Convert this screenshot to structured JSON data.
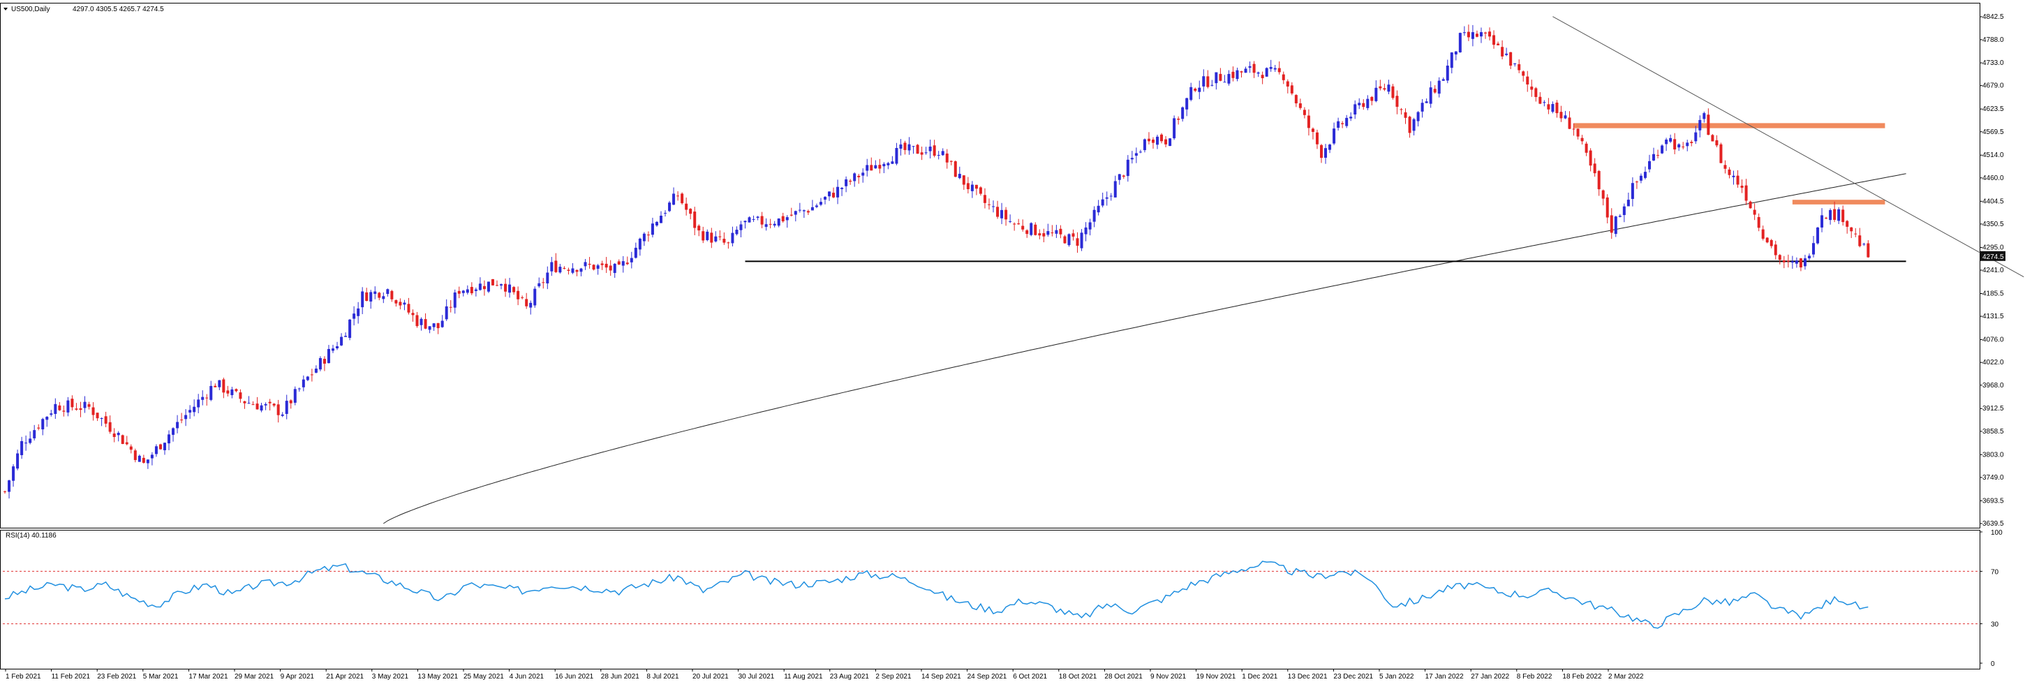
{
  "header": {
    "symbol_label": "US500,Daily",
    "ohlc_text": "4297.0 4305.5 4265.7 4274.5"
  },
  "rsi_header": {
    "label": "RSI(14) 40.1186"
  },
  "colors": {
    "bull": "#2b2bd6",
    "bear": "#e32222",
    "ma": "#222222",
    "rsi": "#1f8fe0",
    "rsi_levels": "#e03030",
    "resistance_zone": "#f08a5d",
    "support_line": "#000000",
    "trendline": "#555555",
    "price_tag_bg": "#111111",
    "price_tag_text": "#ffffff"
  },
  "chart_data": {
    "type": "candlestick",
    "symbol": "US500",
    "timeframe": "Daily",
    "ylim": [
      3639.5,
      4842.5
    ],
    "y_ticks": [
      "4842.5",
      "4788.0",
      "4733.0",
      "4679.0",
      "4623.5",
      "4569.5",
      "4514.0",
      "4460.0",
      "4404.5",
      "4350.5",
      "4295.0",
      "4241.0",
      "4185.5",
      "4131.5",
      "4076.0",
      "4022.0",
      "3968.0",
      "3912.5",
      "3858.5",
      "3803.0",
      "3749.0",
      "3693.5",
      "3639.5"
    ],
    "x_ticks": [
      "1 Feb 2021",
      "11 Feb 2021",
      "23 Feb 2021",
      "5 Mar 2021",
      "17 Mar 2021",
      "29 Mar 2021",
      "9 Apr 2021",
      "21 Apr 2021",
      "3 May 2021",
      "13 May 2021",
      "25 May 2021",
      "4 Jun 2021",
      "16 Jun 2021",
      "28 Jun 2021",
      "8 Jul 2021",
      "20 Jul 2021",
      "30 Jul 2021",
      "11 Aug 2021",
      "23 Aug 2021",
      "2 Sep 2021",
      "14 Sep 2021",
      "24 Sep 2021",
      "6 Oct 2021",
      "18 Oct 2021",
      "28 Oct 2021",
      "9 Nov 2021",
      "19 Nov 2021",
      "1 Dec 2021",
      "13 Dec 2021",
      "23 Dec 2021",
      "5 Jan 2022",
      "17 Jan 2022",
      "27 Jan 2022",
      "8 Feb 2022",
      "18 Feb 2022",
      "2 Mar 2022"
    ],
    "current_price": "4274.5",
    "price_path": [
      [
        0,
        3715
      ],
      [
        4,
        3830
      ],
      [
        12,
        3920
      ],
      [
        20,
        3915
      ],
      [
        27,
        3850
      ],
      [
        33,
        3780
      ],
      [
        40,
        3865
      ],
      [
        50,
        3972
      ],
      [
        57,
        3930
      ],
      [
        66,
        3905
      ],
      [
        72,
        3985
      ],
      [
        80,
        4080
      ],
      [
        85,
        4180
      ],
      [
        91,
        4195
      ],
      [
        98,
        4120
      ],
      [
        103,
        4105
      ],
      [
        108,
        4195
      ],
      [
        118,
        4215
      ],
      [
        124,
        4150
      ],
      [
        130,
        4250
      ],
      [
        140,
        4250
      ],
      [
        146,
        4240
      ],
      [
        154,
        4350
      ],
      [
        160,
        4420
      ],
      [
        165,
        4330
      ],
      [
        172,
        4300
      ],
      [
        175,
        4350
      ],
      [
        184,
        4360
      ],
      [
        192,
        4390
      ],
      [
        205,
        4480
      ],
      [
        213,
        4525
      ],
      [
        222,
        4525
      ],
      [
        227,
        4460
      ],
      [
        233,
        4400
      ],
      [
        240,
        4350
      ],
      [
        247,
        4330
      ],
      [
        255,
        4310
      ],
      [
        260,
        4385
      ],
      [
        265,
        4460
      ],
      [
        272,
        4560
      ],
      [
        276,
        4550
      ],
      [
        283,
        4680
      ],
      [
        289,
        4700
      ],
      [
        296,
        4715
      ],
      [
        304,
        4705
      ],
      [
        309,
        4600
      ],
      [
        313,
        4520
      ],
      [
        317,
        4580
      ],
      [
        323,
        4640
      ],
      [
        329,
        4680
      ],
      [
        334,
        4580
      ],
      [
        339,
        4660
      ],
      [
        342,
        4700
      ],
      [
        346,
        4790
      ],
      [
        351,
        4800
      ],
      [
        357,
        4750
      ],
      [
        362,
        4680
      ],
      [
        366,
        4640
      ],
      [
        373,
        4580
      ],
      [
        378,
        4460
      ],
      [
        382,
        4340
      ],
      [
        386,
        4420
      ],
      [
        390,
        4480
      ],
      [
        395,
        4560
      ],
      [
        399,
        4520
      ],
      [
        404,
        4600
      ],
      [
        409,
        4480
      ],
      [
        413,
        4440
      ],
      [
        418,
        4330
      ],
      [
        423,
        4250
      ],
      [
        428,
        4260
      ],
      [
        432,
        4380
      ],
      [
        437,
        4370
      ],
      [
        441,
        4305
      ],
      [
        443,
        4274.5
      ]
    ],
    "moving_average": {
      "label": "MA",
      "values_start_index": 90,
      "start_value": 3639.5,
      "end_value": 4470
    },
    "support_line": {
      "price": 4262,
      "from_index": 176,
      "to_index": 452
    },
    "resistance_zones": [
      {
        "price_low": 4578,
        "price_high": 4590,
        "from_index": 373,
        "to_index": 447
      },
      {
        "price_low": 4397,
        "price_high": 4408,
        "from_index": 425,
        "to_index": 447
      }
    ],
    "trendline": {
      "from": [
        368,
        4843
      ],
      "to": [
        480,
        4225
      ]
    },
    "ma_period_hidden": true
  },
  "rsi_data": {
    "ylim": [
      0,
      100
    ],
    "y_ticks": [
      "100",
      "70",
      "30",
      "0"
    ],
    "levels": [
      70,
      30
    ],
    "current": 40.1186,
    "path": [
      [
        0,
        50
      ],
      [
        6,
        56
      ],
      [
        12,
        60
      ],
      [
        18,
        56
      ],
      [
        24,
        60
      ],
      [
        30,
        50
      ],
      [
        36,
        44
      ],
      [
        42,
        54
      ],
      [
        48,
        60
      ],
      [
        54,
        52
      ],
      [
        60,
        60
      ],
      [
        68,
        62
      ],
      [
        74,
        70
      ],
      [
        80,
        74
      ],
      [
        86,
        68
      ],
      [
        92,
        62
      ],
      [
        98,
        55
      ],
      [
        104,
        48
      ],
      [
        110,
        60
      ],
      [
        116,
        58
      ],
      [
        124,
        55
      ],
      [
        130,
        60
      ],
      [
        138,
        58
      ],
      [
        146,
        55
      ],
      [
        152,
        60
      ],
      [
        160,
        66
      ],
      [
        166,
        55
      ],
      [
        170,
        60
      ],
      [
        176,
        68
      ],
      [
        182,
        62
      ],
      [
        188,
        60
      ],
      [
        196,
        62
      ],
      [
        204,
        68
      ],
      [
        212,
        66
      ],
      [
        218,
        60
      ],
      [
        224,
        50
      ],
      [
        230,
        44
      ],
      [
        236,
        40
      ],
      [
        242,
        48
      ],
      [
        248,
        44
      ],
      [
        256,
        34
      ],
      [
        262,
        45
      ],
      [
        268,
        40
      ],
      [
        276,
        50
      ],
      [
        282,
        60
      ],
      [
        288,
        66
      ],
      [
        294,
        72
      ],
      [
        300,
        76
      ],
      [
        306,
        70
      ],
      [
        312,
        66
      ],
      [
        318,
        70
      ],
      [
        324,
        66
      ],
      [
        330,
        44
      ],
      [
        336,
        48
      ],
      [
        342,
        56
      ],
      [
        348,
        60
      ],
      [
        356,
        54
      ],
      [
        362,
        52
      ],
      [
        368,
        55
      ],
      [
        374,
        48
      ],
      [
        380,
        42
      ],
      [
        386,
        36
      ],
      [
        392,
        28
      ],
      [
        398,
        38
      ],
      [
        404,
        48
      ],
      [
        410,
        46
      ],
      [
        416,
        52
      ],
      [
        422,
        40
      ],
      [
        428,
        36
      ],
      [
        432,
        44
      ],
      [
        436,
        50
      ],
      [
        440,
        44
      ],
      [
        443,
        40.1
      ]
    ]
  }
}
